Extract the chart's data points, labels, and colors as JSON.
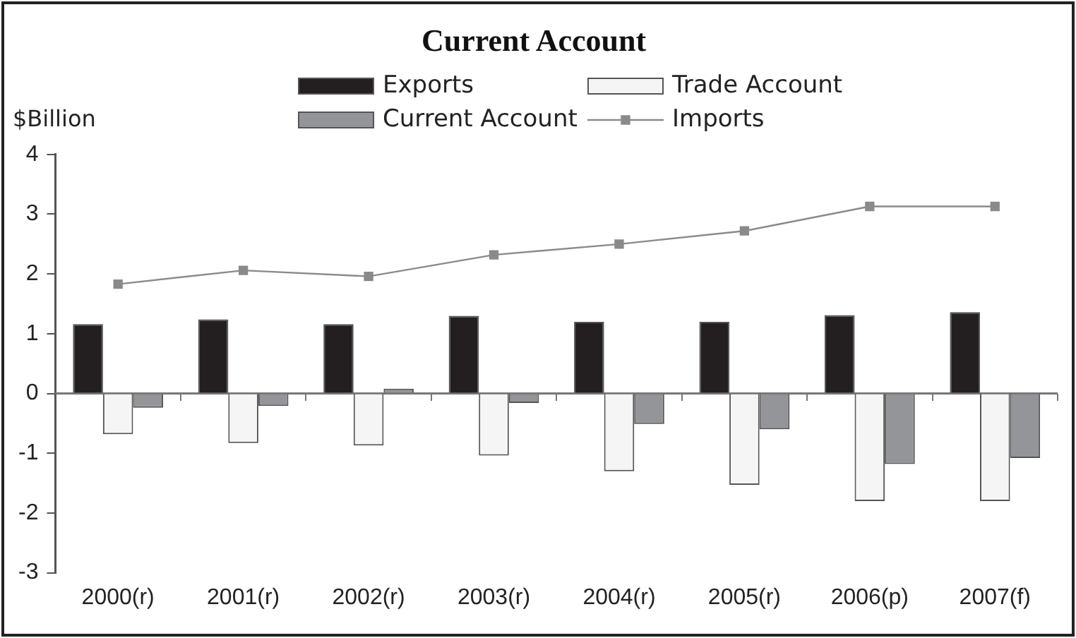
{
  "chart_data": {
    "type": "bar",
    "title": "Current Account",
    "ylabel": "$Billion",
    "categories": [
      "2000(r)",
      "2001(r)",
      "2002(r)",
      "2003(r)",
      "2004(r)",
      "2005(r)",
      "2006(p)",
      "2007(f)"
    ],
    "series": [
      {
        "name": "Exports",
        "color": "#231f20",
        "values": [
          1.16,
          1.24,
          1.16,
          1.3,
          1.2,
          1.2,
          1.31,
          1.36
        ]
      },
      {
        "name": "Trade Account",
        "color": "#f5f5f5",
        "values": [
          -0.68,
          -0.83,
          -0.87,
          -1.04,
          -1.3,
          -1.53,
          -1.8,
          -1.8
        ]
      },
      {
        "name": "Current Account",
        "color": "#939598",
        "values": [
          -0.24,
          -0.21,
          0.08,
          -0.16,
          -0.51,
          -0.6,
          -1.18,
          -1.08
        ]
      },
      {
        "name": "Imports",
        "type": "line",
        "color": "#8a8a8a",
        "values": [
          1.83,
          2.06,
          1.96,
          2.32,
          2.5,
          2.72,
          3.13,
          3.13
        ]
      }
    ],
    "ylim": [
      -3,
      4
    ],
    "yticks": [
      -3,
      -2,
      -1,
      0,
      1,
      2,
      3,
      4
    ],
    "ref_lines": [
      {
        "axis": "y",
        "value": 0,
        "color": "#777777"
      }
    ],
    "grid": false,
    "legend": "top",
    "marker": "square"
  }
}
